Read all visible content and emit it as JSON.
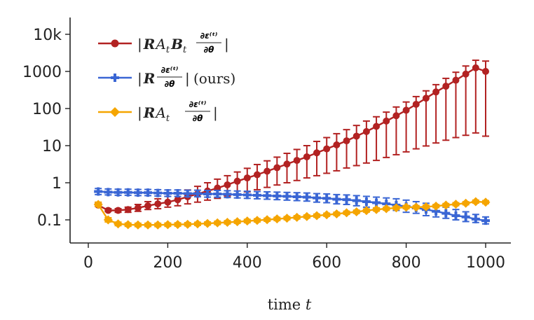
{
  "chart_data": {
    "type": "line",
    "title": "",
    "xlabel": "time t",
    "xlabel_text": "time ",
    "xlabel_var": "t",
    "ylabel": "",
    "yscale": "log",
    "xlim": [
      -40,
      1060
    ],
    "ylim": [
      0.025,
      25000
    ],
    "xticks": [
      0,
      200,
      400,
      600,
      800,
      1000
    ],
    "xtick_labels": [
      "0",
      "200",
      "400",
      "600",
      "800",
      "1000"
    ],
    "yticks": [
      0.1,
      1,
      10,
      100,
      1000,
      10000
    ],
    "ytick_labels": [
      "0.1",
      "1",
      "10",
      "100",
      "1000",
      "10k"
    ],
    "legend_position": "top-left",
    "x": [
      25,
      50,
      75,
      100,
      125,
      150,
      175,
      200,
      225,
      250,
      275,
      300,
      325,
      350,
      375,
      400,
      425,
      450,
      475,
      500,
      525,
      550,
      575,
      600,
      625,
      650,
      675,
      700,
      725,
      750,
      775,
      800,
      825,
      850,
      875,
      900,
      925,
      950,
      975,
      1000
    ],
    "series": [
      {
        "name": "|R A_t B_t ∂ε(t)/∂θ|",
        "legend_parts": {
          "abs": "|",
          "R": "R",
          "A": "A",
          "t1": "t",
          "B": "B",
          "t2": "t",
          "num": "∂ε⁽ᵗ⁾",
          "den": "∂θ"
        },
        "color": "#b22222",
        "marker": "circle",
        "values": [
          0.25,
          0.18,
          0.18,
          0.19,
          0.21,
          0.24,
          0.27,
          0.3,
          0.35,
          0.42,
          0.5,
          0.6,
          0.72,
          0.88,
          1.1,
          1.35,
          1.65,
          2.05,
          2.55,
          3.2,
          4.0,
          5.0,
          6.4,
          8.2,
          10.5,
          13.5,
          18,
          24,
          33,
          46,
          64,
          90,
          130,
          190,
          280,
          400,
          580,
          850,
          1250,
          1000
        ],
        "err_low": [
          0.23,
          0.17,
          0.16,
          0.16,
          0.17,
          0.19,
          0.2,
          0.22,
          0.24,
          0.27,
          0.3,
          0.34,
          0.38,
          0.44,
          0.5,
          0.57,
          0.65,
          0.75,
          0.87,
          1.0,
          1.15,
          1.35,
          1.55,
          1.8,
          2.1,
          2.5,
          2.9,
          3.4,
          4.0,
          4.8,
          5.7,
          6.8,
          8.2,
          9.8,
          11.8,
          14,
          16.5,
          19,
          22,
          18
        ],
        "err_high": [
          0.28,
          0.2,
          0.2,
          0.22,
          0.26,
          0.31,
          0.37,
          0.43,
          0.52,
          0.64,
          0.8,
          1.0,
          1.25,
          1.55,
          1.95,
          2.45,
          3.1,
          3.9,
          4.9,
          6.2,
          7.9,
          10,
          13,
          16.5,
          21,
          27,
          35,
          46,
          60,
          80,
          110,
          150,
          210,
          300,
          440,
          650,
          950,
          1400,
          2000,
          1900
        ],
        "shown_values": [
          0.25,
          0.18,
          0.18,
          0.19,
          0.21,
          0.24,
          0.27,
          0.3,
          0.35,
          0.42,
          0.5,
          0.6,
          0.72,
          0.88,
          1.1,
          1.35,
          1.65,
          2.05,
          2.55,
          3.2,
          4.0,
          5.0,
          6.4,
          8.2,
          10.5,
          13.5,
          18,
          24,
          33,
          46,
          64,
          90,
          130,
          190,
          280,
          400,
          580,
          850,
          1250,
          1000
        ]
      },
      {
        "name": "|R ∂ε(t)/∂θ| (ours)",
        "legend_parts": {
          "abs": "|",
          "R": "R",
          "num": "∂ε⁽ᵗ⁾",
          "den": "∂θ",
          "suffix": "(ours)"
        },
        "color": "#3a66d4",
        "marker": "plus",
        "values": [
          0.58,
          0.56,
          0.55,
          0.55,
          0.54,
          0.54,
          0.53,
          0.52,
          0.52,
          0.51,
          0.51,
          0.5,
          0.5,
          0.49,
          0.48,
          0.47,
          0.46,
          0.45,
          0.44,
          0.43,
          0.42,
          0.41,
          0.39,
          0.38,
          0.36,
          0.35,
          0.33,
          0.31,
          0.29,
          0.27,
          0.25,
          0.23,
          0.21,
          0.19,
          0.17,
          0.15,
          0.13,
          0.12,
          0.105,
          0.095
        ],
        "err_low": [
          0.48,
          0.47,
          0.46,
          0.46,
          0.45,
          0.45,
          0.44,
          0.43,
          0.43,
          0.42,
          0.42,
          0.41,
          0.41,
          0.4,
          0.39,
          0.38,
          0.37,
          0.36,
          0.35,
          0.34,
          0.33,
          0.32,
          0.3,
          0.29,
          0.27,
          0.26,
          0.24,
          0.22,
          0.21,
          0.19,
          0.18,
          0.16,
          0.15,
          0.13,
          0.12,
          0.11,
          0.1,
          0.09,
          0.085,
          0.078
        ],
        "err_high": [
          0.7,
          0.68,
          0.67,
          0.67,
          0.66,
          0.66,
          0.65,
          0.64,
          0.64,
          0.63,
          0.63,
          0.62,
          0.62,
          0.61,
          0.6,
          0.59,
          0.58,
          0.57,
          0.56,
          0.55,
          0.54,
          0.53,
          0.51,
          0.5,
          0.48,
          0.47,
          0.45,
          0.43,
          0.41,
          0.39,
          0.37,
          0.34,
          0.31,
          0.28,
          0.25,
          0.22,
          0.19,
          0.165,
          0.14,
          0.12
        ]
      },
      {
        "name": "|R A_t ∂ε(t)/∂θ|",
        "legend_parts": {
          "abs": "|",
          "R": "R",
          "A": "A",
          "t1": "t",
          "num": "∂ε⁽ᵗ⁾",
          "den": "∂θ"
        },
        "color": "#f5a500",
        "marker": "diamond",
        "values": [
          0.26,
          0.1,
          0.078,
          0.074,
          0.073,
          0.073,
          0.073,
          0.074,
          0.075,
          0.076,
          0.078,
          0.08,
          0.083,
          0.086,
          0.089,
          0.093,
          0.097,
          0.101,
          0.106,
          0.111,
          0.117,
          0.123,
          0.13,
          0.137,
          0.145,
          0.155,
          0.165,
          0.178,
          0.19,
          0.2,
          0.21,
          0.22,
          0.22,
          0.225,
          0.235,
          0.25,
          0.265,
          0.28,
          0.31,
          0.3
        ],
        "err_low": [
          0.23,
          0.088,
          0.07,
          0.067,
          0.066,
          0.066,
          0.066,
          0.067,
          0.068,
          0.069,
          0.071,
          0.073,
          0.075,
          0.078,
          0.081,
          0.084,
          0.088,
          0.092,
          0.096,
          0.101,
          0.106,
          0.112,
          0.118,
          0.125,
          0.132,
          0.141,
          0.15,
          0.162,
          0.173,
          0.182,
          0.19,
          0.2,
          0.2,
          0.205,
          0.214,
          0.228,
          0.242,
          0.256,
          0.283,
          0.274
        ],
        "err_high": [
          0.3,
          0.114,
          0.087,
          0.082,
          0.081,
          0.081,
          0.081,
          0.082,
          0.083,
          0.084,
          0.086,
          0.088,
          0.092,
          0.095,
          0.098,
          0.103,
          0.107,
          0.111,
          0.117,
          0.122,
          0.129,
          0.135,
          0.143,
          0.151,
          0.16,
          0.171,
          0.182,
          0.196,
          0.21,
          0.22,
          0.232,
          0.242,
          0.242,
          0.248,
          0.258,
          0.275,
          0.29,
          0.307,
          0.34,
          0.33
        ]
      }
    ]
  }
}
